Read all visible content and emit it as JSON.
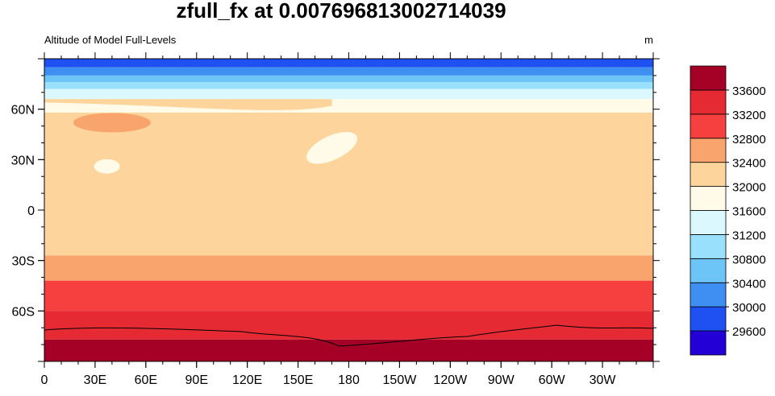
{
  "title": "zfull_fx at 0.007696813002714039",
  "subtitle_left": "Altitude of Model Full-Levels",
  "subtitle_right": "m",
  "map": {
    "xlim": [
      0,
      360
    ],
    "ylim": [
      -90,
      90
    ],
    "xticks": [
      0,
      {
        "value": 30,
        "label": "30E"
      },
      {
        "value": 60,
        "label": "60E"
      },
      {
        "value": 90,
        "label": "90E"
      },
      {
        "value": 120,
        "label": "120E"
      },
      {
        "value": 150,
        "label": "150E"
      },
      180,
      {
        "value": 210,
        "label": "150W"
      },
      {
        "value": 240,
        "label": "120W"
      },
      {
        "value": 270,
        "label": "90W"
      },
      {
        "value": 300,
        "label": "60W"
      },
      {
        "value": 330,
        "label": "30W"
      }
    ],
    "yticks": [
      {
        "value": -60,
        "label": "60S"
      },
      {
        "value": -30,
        "label": "30S"
      },
      0,
      {
        "value": 30,
        "label": "30N"
      },
      {
        "value": 60,
        "label": "60N"
      }
    ]
  },
  "colorbar": {
    "levels": [
      29600,
      30000,
      30400,
      30800,
      31200,
      31600,
      32000,
      32400,
      32800,
      33200,
      33600
    ],
    "colors": [
      "#2200d6",
      "#1f50f2",
      "#3f8ef2",
      "#6cc4f7",
      "#98e0fb",
      "#dcf8ff",
      "#fffbe8",
      "#fcd49c",
      "#f9a46c",
      "#f5403f",
      "#e62a33",
      "#a50026"
    ]
  }
}
